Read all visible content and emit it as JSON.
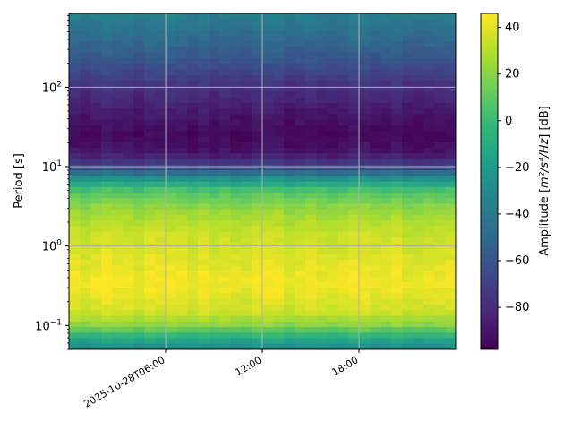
{
  "chart_data": {
    "type": "heatmap",
    "title": "",
    "xlabel": "",
    "ylabel": "Period [s]",
    "y_scale": "log",
    "ylim": [
      0.05,
      850
    ],
    "y_ticks": [
      {
        "value": 0.1,
        "base": "10",
        "exp": "−1"
      },
      {
        "value": 1,
        "base": "10",
        "exp": "0"
      },
      {
        "value": 10,
        "base": "10",
        "exp": "1"
      },
      {
        "value": 100,
        "base": "10",
        "exp": "2"
      }
    ],
    "x_range": [
      "2025-10-28T00:00",
      "2025-10-29T00:00"
    ],
    "x_ticks": [
      {
        "value": "2025-10-28T06:00",
        "label": "2025-10-28T06:00"
      },
      {
        "value": "2025-10-28T12:00",
        "label": "12:00"
      },
      {
        "value": "2025-10-28T18:00",
        "label": "18:00"
      }
    ],
    "grid": true,
    "colormap": "viridis",
    "colorbar": {
      "label_prefix": "Amplitude [",
      "label_math": "m²/s⁴/Hz",
      "label_suffix": "] [dB]",
      "min": -98,
      "max": 46,
      "ticks": [
        {
          "value": 40,
          "label": "40"
        },
        {
          "value": 20,
          "label": "20"
        },
        {
          "value": 0,
          "label": "0"
        },
        {
          "value": -20,
          "label": "−20"
        },
        {
          "value": -40,
          "label": "−40"
        },
        {
          "value": -60,
          "label": "−60"
        },
        {
          "value": -80,
          "label": "−80"
        }
      ]
    },
    "amplitude_profile_db": [
      {
        "period_s": 850,
        "amplitude_db": -36
      },
      {
        "period_s": 500,
        "amplitude_db": -45
      },
      {
        "period_s": 200,
        "amplitude_db": -62
      },
      {
        "period_s": 100,
        "amplitude_db": -78
      },
      {
        "period_s": 50,
        "amplitude_db": -88
      },
      {
        "period_s": 25,
        "amplitude_db": -95
      },
      {
        "period_s": 15,
        "amplitude_db": -90
      },
      {
        "period_s": 10,
        "amplitude_db": -70
      },
      {
        "period_s": 7,
        "amplitude_db": -25
      },
      {
        "period_s": 5,
        "amplitude_db": 5
      },
      {
        "period_s": 3,
        "amplitude_db": 22
      },
      {
        "period_s": 1.5,
        "amplitude_db": 34
      },
      {
        "period_s": 0.8,
        "amplitude_db": 38
      },
      {
        "period_s": 0.35,
        "amplitude_db": 44
      },
      {
        "period_s": 0.15,
        "amplitude_db": 36
      },
      {
        "period_s": 0.1,
        "amplitude_db": 20
      },
      {
        "period_s": 0.07,
        "amplitude_db": -10
      },
      {
        "period_s": 0.05,
        "amplitude_db": -30
      }
    ]
  },
  "colors": {
    "grid": "#b0b0b0",
    "axis": "#000000",
    "viridis_stops": [
      "#440154",
      "#482878",
      "#3e4989",
      "#31688e",
      "#26828e",
      "#1f9e89",
      "#35b779",
      "#6ece58",
      "#b5de2b",
      "#fde725"
    ]
  }
}
